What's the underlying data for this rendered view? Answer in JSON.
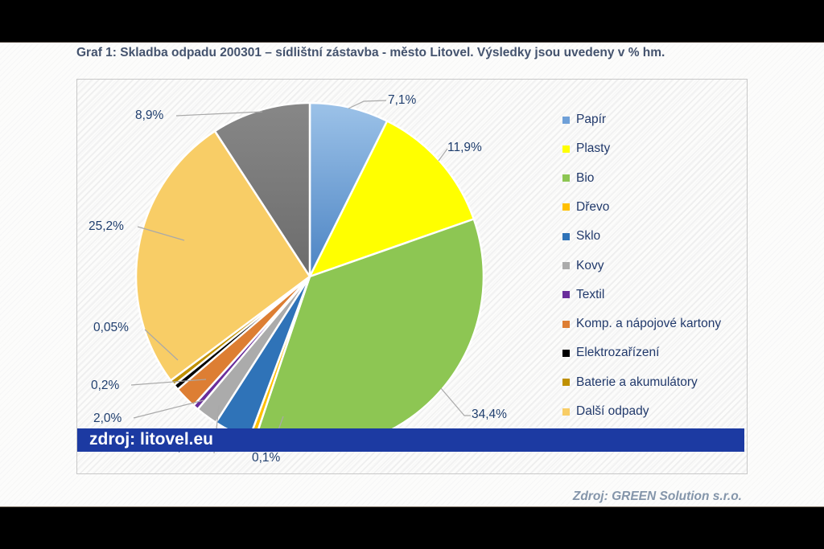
{
  "title": "Graf 1: Skladba odpadu 200301 – sídlištní zástavba - město Litovel. Výsledky jsou uvedeny v % hm.",
  "overlay_banner": {
    "text": "zdroj: litovel.eu"
  },
  "footer": {
    "source": "Zdroj: GREEN Solution s.r.o."
  },
  "colors": {
    "banner_bg": "#1C3AA2",
    "banner_text": "#FFFFFF",
    "title_text": "#44536E",
    "data_label_text": "#1F3E6E",
    "legend_text": "#21396B",
    "footer_text": "#8495AA",
    "chart_border": "#C8C8C8",
    "leader_line": "#A9A9A9"
  },
  "chart_data": {
    "type": "pie",
    "unit": "% hm.",
    "legend_position": "right",
    "grid": false,
    "slices": [
      {
        "label": "Papír",
        "value": 7.1,
        "display_label": "7,1%",
        "color": "#6FA0D8"
      },
      {
        "label": "Plasty",
        "value": 11.9,
        "display_label": "11,9%",
        "color": "#FFFF00"
      },
      {
        "label": "Bio",
        "value": 34.4,
        "display_label": "34,4%",
        "color": "#8DC653"
      },
      {
        "label": "Dřevo",
        "value": 0.1,
        "display_label": "0,1%",
        "color": "#FFC000"
      },
      {
        "label": "Sklo",
        "value": 3.3,
        "display_label": "3,3%",
        "color": "#2F73B8"
      },
      {
        "label": "Kovy",
        "value": 2.0,
        "display_label": "2,0%",
        "color": "#ABABAB"
      },
      {
        "label": "Textil",
        "value": 0.2,
        "display_label": "0,2%",
        "color": "#6A2D9B"
      },
      {
        "label": "Komp. a nápojové kartony",
        "value": 2.0,
        "display_label": "2,0%",
        "color": "#DD7E33",
        "label_hidden": true
      },
      {
        "label": "Elektrozařízení",
        "value": 0.05,
        "display_label": "0,05%",
        "color": "#000000"
      },
      {
        "label": "Baterie a akumulátory",
        "value": 0.05,
        "display_label": "0,05%",
        "color": "#BF9000",
        "label_hidden": true
      },
      {
        "label": "Další odpady",
        "value": 25.2,
        "display_label": "25,2%",
        "color": "#F8CD66"
      },
      {
        "label": "",
        "value": 8.9,
        "display_label": "8,9%",
        "color": "#797979",
        "legend_hidden": true
      }
    ]
  }
}
